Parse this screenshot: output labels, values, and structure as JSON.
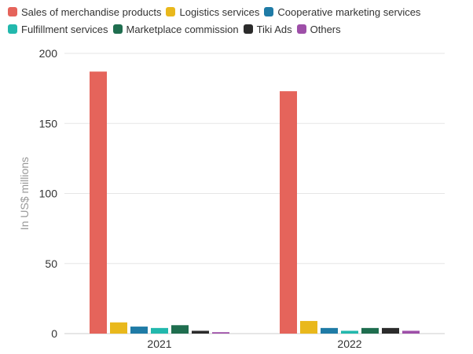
{
  "chart_data": {
    "type": "bar",
    "categories": [
      "2021",
      "2022"
    ],
    "series": [
      {
        "name": "Sales of merchandise products",
        "color": "#e5645b",
        "values": [
          187,
          173
        ]
      },
      {
        "name": "Logistics services",
        "color": "#e9b81c",
        "values": [
          8,
          9
        ]
      },
      {
        "name": "Cooperative marketing services",
        "color": "#1f7ba6",
        "values": [
          5,
          4
        ]
      },
      {
        "name": "Fulfillment services",
        "color": "#22b8ad",
        "values": [
          4,
          2
        ]
      },
      {
        "name": "Marketplace commission",
        "color": "#1f6e4f",
        "values": [
          6,
          4
        ]
      },
      {
        "name": "Tiki Ads",
        "color": "#2b2b2b",
        "values": [
          2,
          4
        ]
      },
      {
        "name": "Others",
        "color": "#9e4fa8",
        "values": [
          1,
          2
        ]
      }
    ],
    "ylabel": "In US$ millions",
    "ylim": [
      0,
      200
    ],
    "yticks": [
      "0",
      "50",
      "100",
      "150",
      "200"
    ],
    "grid": true,
    "legend_position": "top"
  }
}
